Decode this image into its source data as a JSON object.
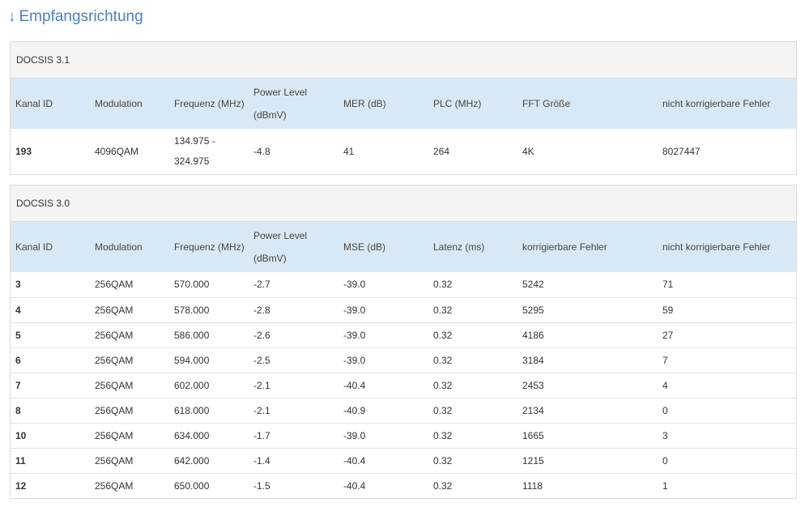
{
  "section_title": "Empfangsrichtung",
  "section_icon": "arrow-down-icon",
  "colors": {
    "accent": "#4a7fc1",
    "header_bg": "#d8e9f5",
    "panel_title_bg": "#f4f4f2"
  },
  "docsis31": {
    "title": "DOCSIS 3.1",
    "headers": [
      "Kanal ID",
      "Modulation",
      "Frequenz (MHz)",
      "Power Level (dBmV)",
      "MER (dB)",
      "PLC (MHz)",
      "FFT Größe",
      "nicht korrigierbare Fehler"
    ],
    "rows": [
      [
        "193",
        "4096QAM",
        "134.975 - 324.975",
        "-4.8",
        "41",
        "264",
        "4K",
        "8027447"
      ]
    ]
  },
  "docsis30": {
    "title": "DOCSIS 3.0",
    "headers": [
      "Kanal ID",
      "Modulation",
      "Frequenz (MHz)",
      "Power Level (dBmV)",
      "MSE (dB)",
      "Latenz (ms)",
      "korrigierbare Fehler",
      "nicht korrigierbare Fehler"
    ],
    "rows": [
      [
        "3",
        "256QAM",
        "570.000",
        "-2.7",
        "-39.0",
        "0.32",
        "5242",
        "71"
      ],
      [
        "4",
        "256QAM",
        "578.000",
        "-2.8",
        "-39.0",
        "0.32",
        "5295",
        "59"
      ],
      [
        "5",
        "256QAM",
        "586.000",
        "-2.6",
        "-39.0",
        "0.32",
        "4186",
        "27"
      ],
      [
        "6",
        "256QAM",
        "594.000",
        "-2.5",
        "-39.0",
        "0.32",
        "3184",
        "7"
      ],
      [
        "7",
        "256QAM",
        "602.000",
        "-2.1",
        "-40.4",
        "0.32",
        "2453",
        "4"
      ],
      [
        "8",
        "256QAM",
        "618.000",
        "-2.1",
        "-40.9",
        "0.32",
        "2134",
        "0"
      ],
      [
        "10",
        "256QAM",
        "634.000",
        "-1.7",
        "-39.0",
        "0.32",
        "1665",
        "3"
      ],
      [
        "11",
        "256QAM",
        "642.000",
        "-1.4",
        "-40.4",
        "0.32",
        "1215",
        "0"
      ],
      [
        "12",
        "256QAM",
        "650.000",
        "-1.5",
        "-40.4",
        "0.32",
        "1118",
        "1"
      ]
    ]
  }
}
